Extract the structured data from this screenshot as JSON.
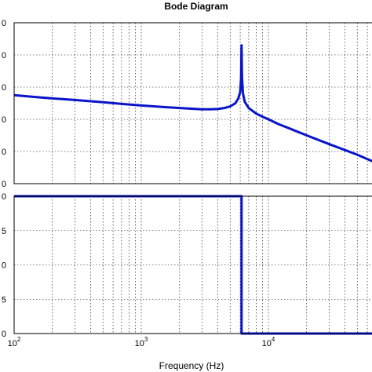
{
  "chart_data": [
    {
      "type": "line",
      "panel": "magnitude",
      "title": "Bode Diagram",
      "xlabel": "",
      "ylabel": "",
      "xscale": "log",
      "xlim": [
        100,
        70000
      ],
      "ylim": [
        0,
        5
      ],
      "y_tick_labels": [
        "0",
        "0",
        "0",
        "0",
        "0",
        "0"
      ],
      "grid": true,
      "color": "#0a14c8",
      "series": [
        {
          "x": [
            100,
            150,
            200,
            300,
            500,
            700,
            1000,
            1500,
            2000,
            3000,
            3500,
            4000,
            4500,
            5000,
            5500,
            5800,
            6000,
            6100,
            6150,
            6200,
            6300,
            6500,
            7000,
            8000,
            9000,
            10000,
            12000,
            15000,
            20000,
            30000,
            50000,
            70000
          ],
          "y": [
            2.75,
            2.69,
            2.65,
            2.6,
            2.53,
            2.48,
            2.43,
            2.38,
            2.35,
            2.31,
            2.31,
            2.32,
            2.35,
            2.4,
            2.5,
            2.65,
            2.85,
            3.3,
            4.3,
            3.3,
            2.82,
            2.55,
            2.35,
            2.18,
            2.08,
            2.0,
            1.85,
            1.7,
            1.5,
            1.23,
            0.9,
            0.66
          ]
        }
      ]
    },
    {
      "type": "line",
      "panel": "phase",
      "title": "",
      "xlabel": "Frequency  (Hz)",
      "ylabel": "",
      "xscale": "log",
      "xlim": [
        100,
        70000
      ],
      "ylim": [
        0,
        4
      ],
      "x_tick_labels": [
        {
          "base": "10",
          "exp": "2"
        },
        {
          "base": "10",
          "exp": "3"
        },
        {
          "base": "10",
          "exp": "4"
        }
      ],
      "y_tick_labels": [
        "0",
        "5",
        "0",
        "5",
        "0"
      ],
      "grid": true,
      "color": "#0a14c8",
      "series": [
        {
          "x": [
            100,
            6150,
            6150,
            6150,
            70000
          ],
          "y": [
            4,
            4,
            4,
            0,
            0
          ]
        }
      ]
    }
  ]
}
